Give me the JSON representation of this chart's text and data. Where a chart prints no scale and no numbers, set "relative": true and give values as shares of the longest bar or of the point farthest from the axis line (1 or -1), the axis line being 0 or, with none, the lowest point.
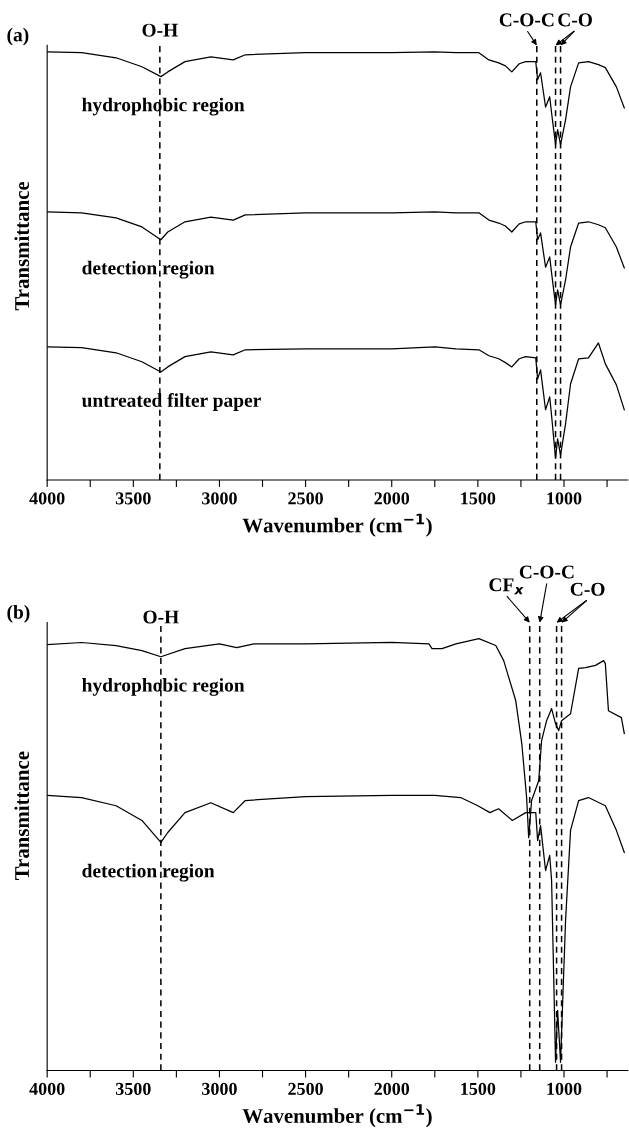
{
  "chart_data": [
    {
      "type": "line",
      "title": "(a)",
      "xlabel": "Wavenumber (cm$^{−1}$)",
      "ylabel": "Transmittance",
      "relative": true,
      "xlim": [
        4000,
        630
      ],
      "xticks": [
        4000,
        {
          "value": 3750,
          "label": null
        },
        3500,
        {
          "value": 3250,
          "label": null
        },
        3000,
        {
          "value": 2750,
          "label": null
        },
        2500,
        {
          "value": 2250,
          "label": null
        },
        2000,
        {
          "value": 1750,
          "label": null
        },
        1500,
        {
          "value": 1250,
          "label": null
        },
        1000,
        {
          "value": 750,
          "label": null
        }
      ],
      "legend": false,
      "x": [
        4000,
        3800,
        3600,
        3450,
        3340,
        3300,
        3200,
        3050,
        2920,
        2850,
        2500,
        2000,
        1750,
        1627,
        1494,
        1436,
        1379,
        1340,
        1303,
        1260,
        1222,
        1164,
        1153,
        1136,
        1107,
        1083,
        1072,
        1049,
        1037,
        1020,
        991,
        962,
        915,
        858,
        800,
        760,
        696,
        650
      ],
      "series": [
        {
          "name": "hydrophobic region",
          "color": "#000000",
          "values": [
            1.0,
            0.998,
            0.986,
            0.965,
            0.942,
            0.953,
            0.977,
            0.988,
            0.981,
            0.993,
            0.998,
            0.998,
            1.0,
            0.998,
            0.998,
            0.981,
            0.974,
            0.967,
            0.953,
            0.972,
            0.977,
            0.977,
            0.935,
            0.951,
            0.871,
            0.895,
            0.857,
            0.783,
            0.818,
            0.783,
            0.841,
            0.918,
            0.974,
            0.977,
            0.97,
            0.963,
            0.918,
            0.869
          ]
        },
        {
          "name": "detection region",
          "color": "#000000",
          "values": [
            0.626,
            0.624,
            0.612,
            0.591,
            0.561,
            0.579,
            0.603,
            0.614,
            0.607,
            0.619,
            0.624,
            0.624,
            0.626,
            0.624,
            0.624,
            0.607,
            0.6,
            0.593,
            0.579,
            0.598,
            0.603,
            0.603,
            0.561,
            0.577,
            0.497,
            0.521,
            0.483,
            0.409,
            0.444,
            0.409,
            0.467,
            0.544,
            0.6,
            0.603,
            0.596,
            0.589,
            0.544,
            0.495
          ]
        },
        {
          "name": "untreated filter paper",
          "color": "#000000",
          "values": [
            0.311,
            0.309,
            0.297,
            0.276,
            0.252,
            0.264,
            0.288,
            0.299,
            0.292,
            0.304,
            0.306,
            0.306,
            0.311,
            0.306,
            0.304,
            0.29,
            0.283,
            0.274,
            0.264,
            0.283,
            0.288,
            0.285,
            0.236,
            0.257,
            0.164,
            0.194,
            0.15,
            0.051,
            0.096,
            0.058,
            0.131,
            0.224,
            0.283,
            0.285,
            0.32,
            0.271,
            0.222,
            0.164
          ]
        }
      ],
      "ref_lines": [
        {
          "axis": "x",
          "value": 3346,
          "line_style": "dashed",
          "color": "#000000"
        },
        {
          "axis": "x",
          "value": 1158,
          "label": "C-O-C",
          "line_style": "dashed",
          "color": "#000000"
        },
        {
          "axis": "x",
          "value": 1049,
          "label": "C-O",
          "line_style": "dashed",
          "color": "#000000"
        },
        {
          "axis": "x",
          "value": 1020,
          "line_style": "dashed",
          "color": "#000000"
        }
      ],
      "annotations": [
        {
          "text": "O-H",
          "x": 3346,
          "y": 1.0
        }
      ]
    },
    {
      "type": "line",
      "title": "(b)",
      "xlabel": "Wavenumber (cm$^{−1}$)",
      "ylabel": "Transmittance",
      "relative": true,
      "xlim": [
        4000,
        630
      ],
      "xticks": [
        4000,
        {
          "value": 3750,
          "label": null
        },
        3500,
        {
          "value": 3250,
          "label": null
        },
        3000,
        {
          "value": 2750,
          "label": null
        },
        2500,
        {
          "value": 2250,
          "label": null
        },
        2000,
        {
          "value": 1750,
          "label": null
        },
        1500,
        {
          "value": 1250,
          "label": null
        },
        1000,
        {
          "value": 750,
          "label": null
        }
      ],
      "legend": false,
      "series": [
        {
          "name": "hydrophobic region",
          "color": "#000000",
          "x": [
            4000,
            3800,
            3600,
            3450,
            3340,
            3200,
            3000,
            2900,
            2800,
            2500,
            2000,
            1784,
            1766,
            1708,
            1627,
            1494,
            1396,
            1350,
            1280,
            1245,
            1217,
            1205,
            1188,
            1147,
            1130,
            1101,
            1072,
            1049,
            1031,
            1014,
            962,
            915,
            875,
            817,
            770,
            760,
            742,
            667,
            650
          ],
          "values": [
            0.986,
            0.991,
            0.984,
            0.972,
            0.958,
            0.977,
            0.988,
            0.979,
            0.988,
            0.988,
            0.991,
            0.988,
            0.977,
            0.977,
            0.988,
            1.0,
            0.984,
            0.949,
            0.856,
            0.757,
            0.632,
            0.539,
            0.625,
            0.671,
            0.764,
            0.81,
            0.838,
            0.803,
            0.787,
            0.81,
            0.826,
            0.931,
            0.933,
            0.938,
            0.949,
            0.942,
            0.833,
            0.817,
            0.78
          ]
        },
        {
          "name": "detection region",
          "color": "#000000",
          "x": [
            4000,
            3800,
            3600,
            3450,
            3340,
            3300,
            3200,
            3050,
            2920,
            2850,
            2500,
            2000,
            1750,
            1600,
            1500,
            1430,
            1380,
            1300,
            1222,
            1164,
            1153,
            1136,
            1107,
            1083,
            1072,
            1049,
            1037,
            1020,
            991,
            962,
            915,
            858,
            760,
            696,
            650
          ],
          "values": [
            0.637,
            0.632,
            0.613,
            0.579,
            0.528,
            0.551,
            0.597,
            0.62,
            0.597,
            0.625,
            0.634,
            0.637,
            0.637,
            0.632,
            0.613,
            0.597,
            0.606,
            0.579,
            0.597,
            0.597,
            0.532,
            0.567,
            0.463,
            0.498,
            0.44,
            0.019,
            0.139,
            0.019,
            0.347,
            0.556,
            0.625,
            0.632,
            0.613,
            0.556,
            0.505
          ]
        }
      ],
      "ref_lines": [
        {
          "axis": "x",
          "value": 3340,
          "line_style": "dashed",
          "color": "#000000"
        },
        {
          "axis": "x",
          "value": 1199,
          "label": "CF$_{x}$",
          "line_style": "dashed",
          "color": "#000000"
        },
        {
          "axis": "x",
          "value": 1141,
          "label": "C-O-C",
          "line_style": "dashed",
          "color": "#000000"
        },
        {
          "axis": "x",
          "value": 1043,
          "label": "C-O",
          "line_style": "dashed",
          "color": "#000000"
        },
        {
          "axis": "x",
          "value": 1014,
          "line_style": "dashed",
          "color": "#000000"
        }
      ],
      "annotations": [
        {
          "text": "O-H",
          "x": 3340,
          "y": 1.0
        }
      ]
    }
  ]
}
